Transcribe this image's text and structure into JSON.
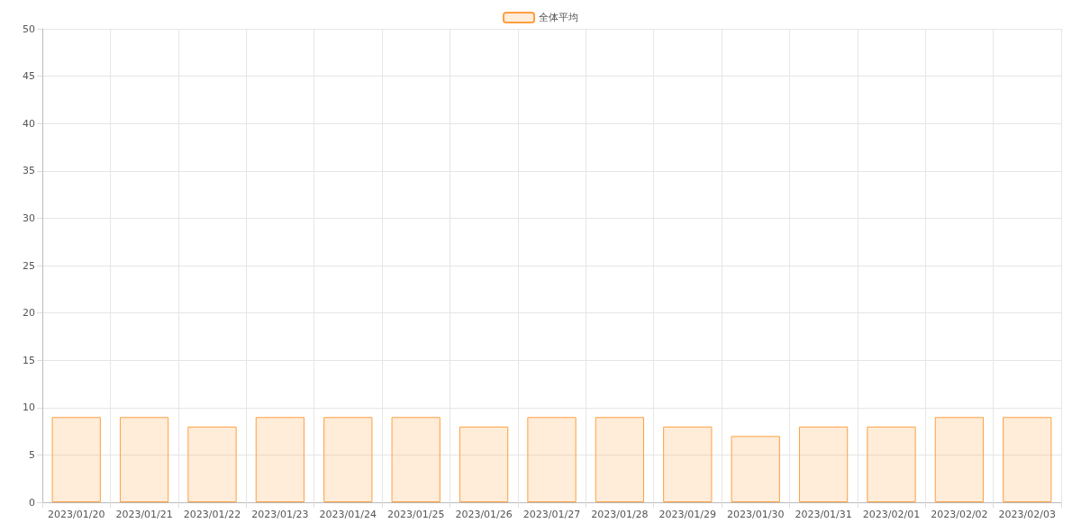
{
  "chart_data": {
    "type": "bar",
    "categories": [
      "2023/01/20",
      "2023/01/21",
      "2023/01/22",
      "2023/01/23",
      "2023/01/24",
      "2023/01/25",
      "2023/01/26",
      "2023/01/27",
      "2023/01/28",
      "2023/01/29",
      "2023/01/30",
      "2023/01/31",
      "2023/02/01",
      "2023/02/02",
      "2023/02/03"
    ],
    "series": [
      {
        "name": "全体平均",
        "color": "#ff9f40",
        "values": [
          9,
          9,
          8,
          9,
          9,
          9,
          8,
          9,
          9,
          8,
          7,
          8,
          8,
          9,
          9
        ]
      }
    ],
    "ylim": [
      0,
      50
    ],
    "yticks": [
      0,
      5,
      10,
      15,
      20,
      25,
      30,
      35,
      40,
      45,
      50
    ],
    "grid": true,
    "legend": "top"
  }
}
